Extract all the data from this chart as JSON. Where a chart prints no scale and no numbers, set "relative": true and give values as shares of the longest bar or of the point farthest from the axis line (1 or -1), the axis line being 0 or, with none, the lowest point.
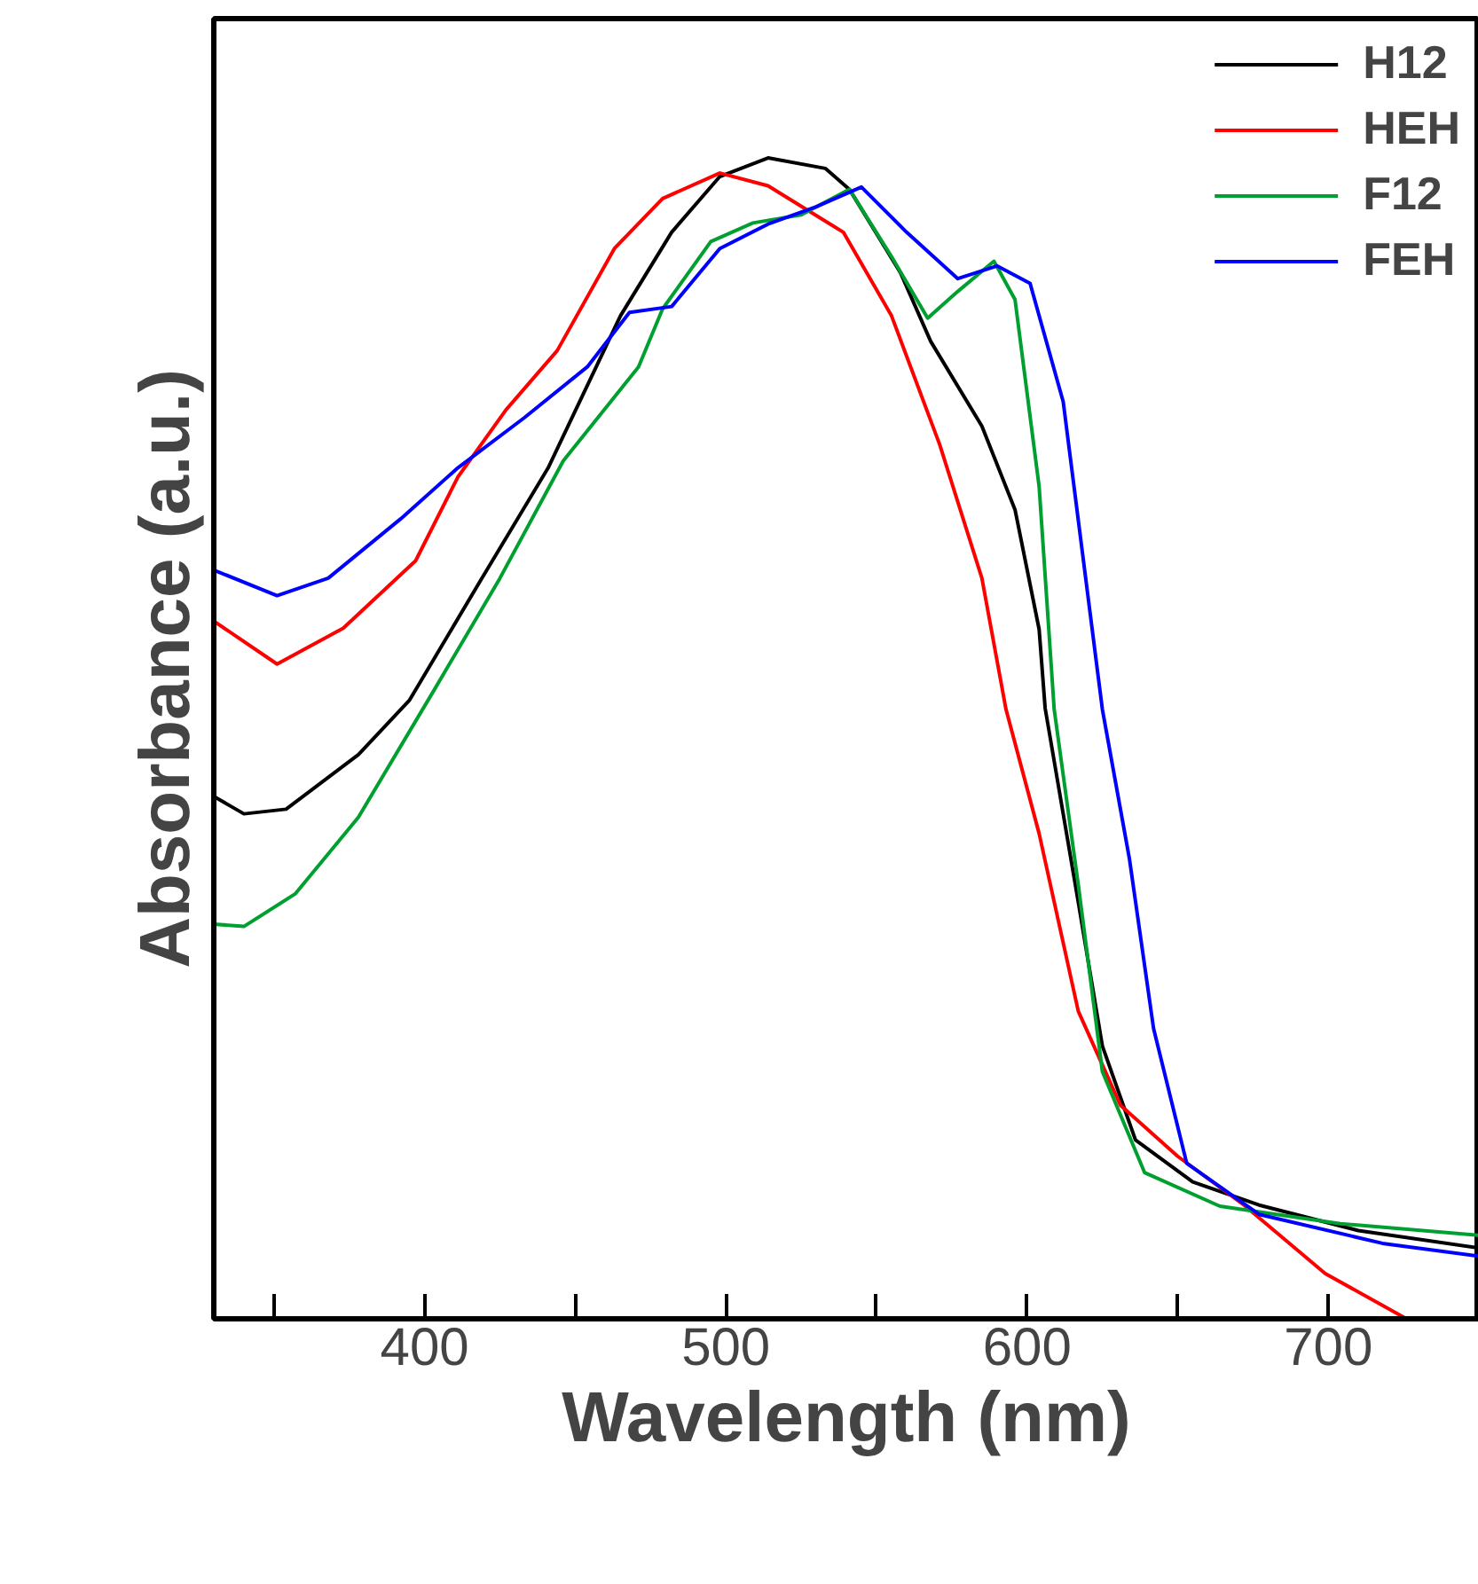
{
  "chart_data": {
    "type": "line",
    "xlabel": "Wavelength (nm)",
    "ylabel": "Absorbance (a.u.)",
    "relative": true,
    "xlim": [
      330,
      750
    ],
    "xticks": [
      {
        "value": 350,
        "label": null
      },
      400,
      {
        "value": 450,
        "label": null
      },
      500,
      {
        "value": 550,
        "label": null
      },
      600,
      {
        "value": 650,
        "label": null
      },
      700
    ],
    "legend": "top right",
    "grid": false,
    "line_style": "solid",
    "marker": "none",
    "series": [
      {
        "name": "H12",
        "color": "#000000",
        "x": [
          330,
          340,
          354,
          378,
          395,
          419,
          441,
          465,
          482,
          498,
          514,
          533,
          541,
          558,
          568,
          585,
          596,
          604,
          606,
          617,
          625,
          636,
          655,
          677,
          710,
          750
        ],
        "values": [
          0.45,
          0.435,
          0.439,
          0.486,
          0.533,
          0.638,
          0.733,
          0.864,
          0.936,
          0.984,
          1.0,
          0.991,
          0.973,
          0.901,
          0.842,
          0.769,
          0.697,
          0.594,
          0.526,
          0.359,
          0.235,
          0.154,
          0.118,
          0.098,
          0.076,
          0.061
        ]
      },
      {
        "name": "HEH",
        "color": "#ff0000",
        "x": [
          330,
          351,
          373,
          397,
          411,
          427,
          444,
          463,
          479,
          498,
          514,
          539,
          555,
          571,
          585,
          593,
          604,
          617,
          631,
          650,
          672,
          699,
          726
        ],
        "values": [
          0.601,
          0.564,
          0.595,
          0.653,
          0.725,
          0.783,
          0.834,
          0.922,
          0.965,
          0.987,
          0.976,
          0.936,
          0.864,
          0.753,
          0.638,
          0.525,
          0.418,
          0.265,
          0.184,
          0.14,
          0.098,
          0.039,
          0.0
        ]
      },
      {
        "name": "F12",
        "color": "#00a030",
        "x": [
          330,
          340,
          357,
          378,
          403,
          425,
          446,
          471,
          479,
          495,
          509,
          525,
          541,
          555,
          567,
          577,
          589,
          596,
          604,
          609,
          617,
          625,
          639,
          664,
          704,
          750
        ],
        "values": [
          0.34,
          0.338,
          0.366,
          0.432,
          0.541,
          0.638,
          0.739,
          0.82,
          0.87,
          0.928,
          0.944,
          0.951,
          0.973,
          0.915,
          0.862,
          0.885,
          0.911,
          0.878,
          0.717,
          0.525,
          0.374,
          0.213,
          0.126,
          0.097,
          0.082,
          0.072
        ]
      },
      {
        "name": "FEH",
        "color": "#0000ff",
        "x": [
          330,
          351,
          368,
          392,
          411,
          433,
          454,
          468,
          482,
          498,
          514,
          530,
          545,
          560,
          577,
          590,
          601,
          612,
          625,
          634,
          642,
          653,
          677,
          718,
          750
        ],
        "values": [
          0.645,
          0.623,
          0.638,
          0.689,
          0.733,
          0.776,
          0.82,
          0.867,
          0.872,
          0.922,
          0.943,
          0.958,
          0.975,
          0.936,
          0.896,
          0.907,
          0.892,
          0.79,
          0.525,
          0.396,
          0.25,
          0.134,
          0.09,
          0.065,
          0.054
        ]
      }
    ]
  }
}
